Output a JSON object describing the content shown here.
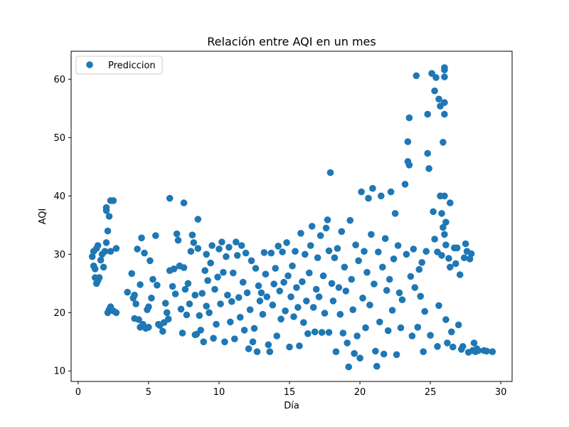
{
  "chart_data": {
    "type": "scatter",
    "title": "Relación entre AQI en un mes",
    "xlabel": "Día",
    "ylabel": "AQI",
    "xlim": [
      -0.5,
      30.8
    ],
    "ylim": [
      8.2,
      64.8
    ],
    "xticks": [
      0,
      5,
      10,
      15,
      20,
      25,
      30
    ],
    "yticks": [
      10,
      20,
      30,
      40,
      50,
      60
    ],
    "grid": false,
    "legend_position": "upper-left",
    "color": "#1f77b4",
    "series": [
      {
        "name": "Prediccion",
        "points": [
          [
            1.0,
            29.6
          ],
          [
            1.1,
            30.5
          ],
          [
            1.1,
            28.0
          ],
          [
            1.2,
            27.5
          ],
          [
            1.3,
            31.0
          ],
          [
            1.4,
            31.5
          ],
          [
            1.2,
            26.0
          ],
          [
            1.3,
            25.0
          ],
          [
            1.5,
            26.0
          ],
          [
            1.6,
            29.0
          ],
          [
            1.7,
            30.0
          ],
          [
            1.8,
            27.8
          ],
          [
            1.4,
            25.5
          ],
          [
            2.0,
            38.0
          ],
          [
            2.0,
            37.5
          ],
          [
            2.1,
            34.0
          ],
          [
            2.2,
            36.5
          ],
          [
            2.0,
            32.0
          ],
          [
            2.3,
            39.2
          ],
          [
            2.5,
            39.2
          ],
          [
            1.9,
            30.5
          ],
          [
            2.3,
            30.5
          ],
          [
            2.7,
            31.0
          ],
          [
            2.1,
            20.0
          ],
          [
            2.2,
            20.5
          ],
          [
            2.3,
            21.0
          ],
          [
            2.5,
            20.3
          ],
          [
            2.7,
            20.0
          ],
          [
            3.5,
            23.5
          ],
          [
            3.8,
            26.7
          ],
          [
            3.9,
            22.5
          ],
          [
            4.0,
            23.0
          ],
          [
            4.1,
            21.5
          ],
          [
            4.2,
            30.9
          ],
          [
            4.4,
            24.8
          ],
          [
            4.5,
            32.8
          ],
          [
            4.7,
            30.2
          ],
          [
            4.0,
            19.0
          ],
          [
            4.3,
            18.8
          ],
          [
            4.4,
            17.5
          ],
          [
            4.6,
            18.0
          ],
          [
            4.8,
            17.3
          ],
          [
            5.0,
            17.5
          ],
          [
            4.9,
            20.5
          ],
          [
            5.0,
            21.0
          ],
          [
            5.2,
            22.5
          ],
          [
            5.1,
            28.9
          ],
          [
            5.3,
            25.7
          ],
          [
            5.5,
            33.2
          ],
          [
            5.6,
            24.7
          ],
          [
            5.7,
            18.0
          ],
          [
            5.8,
            17.8
          ],
          [
            6.0,
            16.8
          ],
          [
            6.1,
            18.3
          ],
          [
            6.2,
            21.6
          ],
          [
            6.3,
            20.0
          ],
          [
            6.4,
            18.9
          ],
          [
            6.5,
            27.2
          ],
          [
            6.5,
            39.6
          ],
          [
            6.7,
            24.5
          ],
          [
            6.8,
            27.5
          ],
          [
            6.9,
            23.2
          ],
          [
            7.0,
            33.5
          ],
          [
            7.1,
            32.4
          ],
          [
            7.2,
            28.0
          ],
          [
            7.3,
            20.6
          ],
          [
            7.4,
            16.5
          ],
          [
            7.5,
            38.8
          ],
          [
            7.5,
            27.7
          ],
          [
            7.6,
            24.0
          ],
          [
            7.7,
            19.6
          ],
          [
            7.8,
            25.0
          ],
          [
            7.9,
            21.5
          ],
          [
            8.0,
            30.5
          ],
          [
            8.1,
            33.3
          ],
          [
            8.2,
            32.0
          ],
          [
            8.3,
            23.0
          ],
          [
            8.3,
            16.2
          ],
          [
            8.4,
            16.3
          ],
          [
            8.5,
            36.0
          ],
          [
            8.5,
            31.0
          ],
          [
            8.6,
            19.5
          ],
          [
            8.7,
            17.0
          ],
          [
            8.8,
            23.3
          ],
          [
            8.9,
            15.0
          ],
          [
            9.0,
            27.2
          ],
          [
            9.1,
            21.1
          ],
          [
            9.1,
            30.0
          ],
          [
            9.2,
            25.5
          ],
          [
            9.3,
            20.0
          ],
          [
            9.4,
            28.5
          ],
          [
            9.5,
            31.5
          ],
          [
            9.6,
            15.6
          ],
          [
            9.7,
            24.0
          ],
          [
            9.8,
            18.0
          ],
          [
            9.9,
            26.1
          ],
          [
            10.0,
            30.9
          ],
          [
            10.1,
            21.5
          ],
          [
            10.2,
            32.1
          ],
          [
            10.3,
            26.9
          ],
          [
            10.4,
            15.0
          ],
          [
            10.5,
            29.6
          ],
          [
            10.6,
            23.0
          ],
          [
            10.7,
            31.2
          ],
          [
            10.8,
            18.4
          ],
          [
            10.9,
            21.9
          ],
          [
            11.0,
            26.8
          ],
          [
            11.1,
            15.5
          ],
          [
            11.2,
            32.1
          ],
          [
            11.3,
            29.8
          ],
          [
            11.4,
            22.6
          ],
          [
            11.5,
            19.2
          ],
          [
            11.6,
            31.5
          ],
          [
            11.7,
            25.2
          ],
          [
            11.8,
            17.0
          ],
          [
            11.9,
            30.2
          ],
          [
            12.0,
            23.4
          ],
          [
            12.1,
            13.8
          ],
          [
            12.2,
            20.5
          ],
          [
            12.3,
            28.9
          ],
          [
            12.4,
            15.0
          ],
          [
            12.5,
            17.3
          ],
          [
            12.6,
            27.6
          ],
          [
            12.7,
            13.3
          ],
          [
            12.8,
            24.6
          ],
          [
            12.9,
            22.0
          ],
          [
            13.0,
            23.4
          ],
          [
            13.1,
            19.7
          ],
          [
            13.2,
            30.3
          ],
          [
            13.3,
            26.6
          ],
          [
            13.4,
            22.7
          ],
          [
            13.5,
            14.5
          ],
          [
            13.6,
            13.3
          ],
          [
            13.7,
            30.2
          ],
          [
            13.8,
            21.3
          ],
          [
            13.9,
            24.9
          ],
          [
            14.0,
            27.6
          ],
          [
            14.1,
            16.0
          ],
          [
            14.2,
            31.4
          ],
          [
            14.3,
            23.7
          ],
          [
            14.4,
            18.9
          ],
          [
            14.5,
            30.4
          ],
          [
            14.6,
            25.2
          ],
          [
            14.7,
            20.3
          ],
          [
            14.8,
            32.0
          ],
          [
            14.9,
            26.3
          ],
          [
            15.0,
            14.1
          ],
          [
            15.1,
            22.7
          ],
          [
            15.2,
            28.0
          ],
          [
            15.3,
            19.3
          ],
          [
            15.4,
            30.5
          ],
          [
            15.5,
            24.3
          ],
          [
            15.6,
            20.9
          ],
          [
            15.7,
            14.3
          ],
          [
            15.8,
            33.6
          ],
          [
            15.9,
            25.3
          ],
          [
            16.0,
            18.3
          ],
          [
            16.1,
            30.0
          ],
          [
            16.2,
            22.0
          ],
          [
            16.3,
            16.4
          ],
          [
            16.4,
            26.8
          ],
          [
            16.5,
            31.5
          ],
          [
            16.6,
            34.8
          ],
          [
            16.7,
            20.9
          ],
          [
            16.8,
            16.7
          ],
          [
            16.9,
            24.0
          ],
          [
            17.0,
            29.4
          ],
          [
            17.1,
            22.7
          ],
          [
            17.2,
            33.2
          ],
          [
            17.3,
            16.6
          ],
          [
            17.4,
            26.3
          ],
          [
            17.5,
            19.9
          ],
          [
            17.6,
            34.5
          ],
          [
            17.7,
            35.9
          ],
          [
            17.8,
            30.6
          ],
          [
            17.9,
            44.0
          ],
          [
            17.8,
            16.6
          ],
          [
            18.0,
            25.0
          ],
          [
            18.1,
            22.0
          ],
          [
            18.2,
            29.4
          ],
          [
            18.3,
            13.3
          ],
          [
            18.4,
            31.0
          ],
          [
            18.5,
            24.3
          ],
          [
            18.6,
            19.7
          ],
          [
            18.7,
            33.9
          ],
          [
            18.8,
            16.5
          ],
          [
            18.9,
            27.8
          ],
          [
            19.0,
            23.7
          ],
          [
            19.1,
            14.8
          ],
          [
            19.2,
            10.7
          ],
          [
            19.3,
            35.8
          ],
          [
            19.4,
            25.7
          ],
          [
            19.5,
            20.5
          ],
          [
            19.6,
            13.0
          ],
          [
            19.7,
            31.6
          ],
          [
            19.8,
            16.0
          ],
          [
            19.9,
            28.9
          ],
          [
            20.0,
            12.2
          ],
          [
            20.1,
            40.7
          ],
          [
            20.2,
            22.5
          ],
          [
            20.3,
            30.5
          ],
          [
            20.4,
            17.4
          ],
          [
            20.5,
            26.9
          ],
          [
            20.6,
            39.6
          ],
          [
            20.7,
            21.3
          ],
          [
            20.8,
            33.4
          ],
          [
            20.9,
            41.3
          ],
          [
            21.0,
            24.9
          ],
          [
            21.1,
            13.4
          ],
          [
            21.2,
            10.8
          ],
          [
            21.3,
            30.4
          ],
          [
            21.4,
            18.4
          ],
          [
            21.5,
            40.0
          ],
          [
            21.6,
            27.8
          ],
          [
            21.7,
            12.9
          ],
          [
            21.8,
            32.7
          ],
          [
            21.9,
            23.8
          ],
          [
            22.0,
            16.9
          ],
          [
            22.1,
            25.7
          ],
          [
            22.2,
            40.7
          ],
          [
            22.3,
            20.4
          ],
          [
            22.4,
            29.2
          ],
          [
            22.5,
            37.0
          ],
          [
            22.6,
            12.8
          ],
          [
            22.7,
            31.5
          ],
          [
            22.8,
            23.4
          ],
          [
            22.9,
            17.4
          ],
          [
            23.0,
            22.2
          ],
          [
            23.2,
            42.0
          ],
          [
            23.3,
            30.0
          ],
          [
            23.4,
            49.3
          ],
          [
            23.4,
            45.9
          ],
          [
            23.5,
            45.3
          ],
          [
            23.5,
            53.4
          ],
          [
            23.6,
            26.2
          ],
          [
            23.7,
            16.0
          ],
          [
            23.8,
            30.9
          ],
          [
            23.9,
            24.3
          ],
          [
            24.0,
            60.6
          ],
          [
            24.1,
            17.5
          ],
          [
            24.2,
            27.4
          ],
          [
            24.3,
            22.8
          ],
          [
            24.4,
            28.6
          ],
          [
            24.5,
            13.3
          ],
          [
            24.6,
            20.2
          ],
          [
            24.7,
            30.5
          ],
          [
            24.8,
            54.0
          ],
          [
            24.8,
            47.3
          ],
          [
            24.9,
            44.7
          ],
          [
            25.0,
            16.1
          ],
          [
            25.1,
            61.0
          ],
          [
            25.2,
            37.3
          ],
          [
            25.3,
            58.0
          ],
          [
            25.3,
            32.6
          ],
          [
            25.4,
            60.3
          ],
          [
            25.5,
            30.4
          ],
          [
            25.5,
            14.2
          ],
          [
            25.6,
            56.6
          ],
          [
            25.6,
            21.2
          ],
          [
            25.7,
            55.4
          ],
          [
            25.7,
            40.0
          ],
          [
            25.8,
            29.8
          ],
          [
            25.8,
            37.0
          ],
          [
            25.9,
            49.2
          ],
          [
            25.9,
            34.6
          ],
          [
            26.0,
            62.0
          ],
          [
            26.0,
            61.6
          ],
          [
            26.0,
            60.4
          ],
          [
            26.0,
            54.0
          ],
          [
            26.0,
            56.0
          ],
          [
            26.0,
            40.0
          ],
          [
            26.0,
            33.4
          ],
          [
            26.1,
            35.5
          ],
          [
            26.1,
            31.6
          ],
          [
            26.1,
            18.8
          ],
          [
            26.2,
            14.8
          ],
          [
            26.3,
            29.3
          ],
          [
            26.4,
            38.8
          ],
          [
            26.4,
            27.8
          ],
          [
            26.5,
            16.7
          ],
          [
            26.6,
            14.1
          ],
          [
            26.7,
            31.1
          ],
          [
            26.8,
            28.4
          ],
          [
            26.9,
            31.1
          ],
          [
            27.0,
            17.9
          ],
          [
            27.1,
            26.5
          ],
          [
            27.2,
            13.7
          ],
          [
            27.3,
            14.2
          ],
          [
            27.4,
            29.4
          ],
          [
            27.5,
            31.8
          ],
          [
            27.6,
            30.5
          ],
          [
            27.7,
            13.2
          ],
          [
            27.8,
            29.2
          ],
          [
            27.9,
            30.1
          ],
          [
            28.0,
            13.5
          ],
          [
            28.1,
            14.8
          ],
          [
            28.2,
            13.3
          ],
          [
            28.3,
            13.8
          ],
          [
            28.4,
            13.5
          ],
          [
            28.8,
            13.5
          ],
          [
            29.0,
            13.4
          ],
          [
            29.4,
            13.3
          ]
        ]
      }
    ]
  }
}
